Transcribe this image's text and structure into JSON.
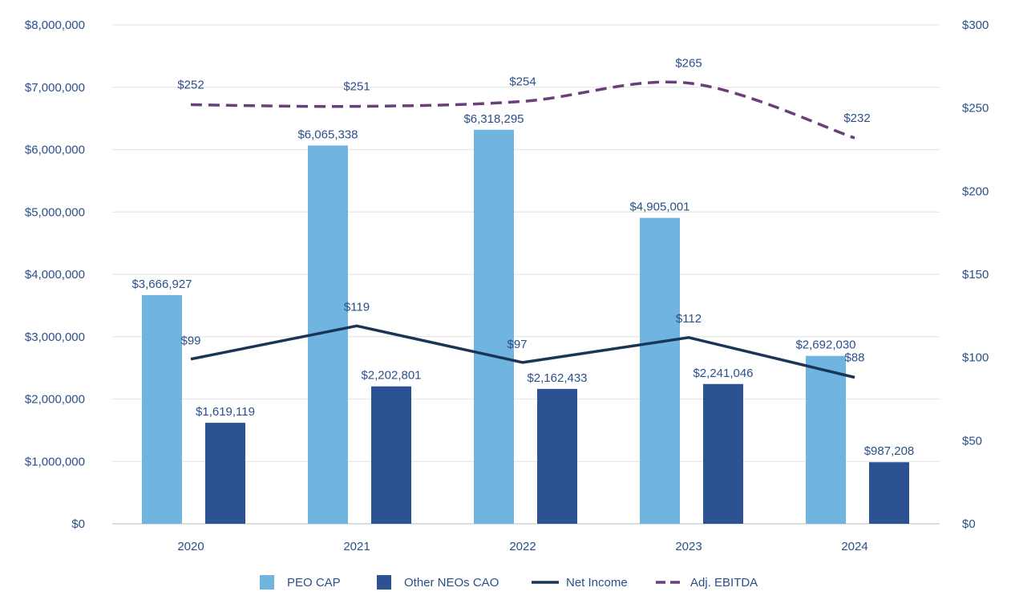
{
  "chart_data": {
    "type": "bar",
    "categories": [
      "2020",
      "2021",
      "2022",
      "2023",
      "2024"
    ],
    "left_axis": {
      "ylim": [
        0,
        8000000
      ],
      "ticks": [
        "$0",
        "$1,000,000",
        "$2,000,000",
        "$3,000,000",
        "$4,000,000",
        "$5,000,000",
        "$6,000,000",
        "$7,000,000",
        "$8,000,000"
      ]
    },
    "right_axis": {
      "ylim": [
        0,
        300
      ],
      "ticks": [
        "$0",
        "$50",
        "$100",
        "$150",
        "$200",
        "$250",
        "$300"
      ]
    },
    "grid": true,
    "legend_position": "bottom",
    "series": [
      {
        "name": "PEO CAP",
        "type": "bar",
        "axis": "left",
        "color": "#70b4e0",
        "values": [
          3666927,
          6065338,
          6318295,
          4905001,
          2692030
        ],
        "labels": [
          "$3,666,927",
          "$6,065,338",
          "$6,318,295",
          "$4,905,001",
          "$2,692,030"
        ]
      },
      {
        "name": "Other NEOs CAO",
        "type": "bar",
        "axis": "left",
        "color": "#2c5293",
        "values": [
          1619119,
          2202801,
          2162433,
          2241046,
          987208
        ],
        "labels": [
          "$1,619,119",
          "$2,202,801",
          "$2,162,433",
          "$2,241,046",
          "$987,208"
        ]
      },
      {
        "name": "Net Income",
        "type": "line",
        "axis": "right",
        "color": "#1b3557",
        "line_style": "solid",
        "values": [
          99,
          119,
          97,
          112,
          88
        ],
        "labels": [
          "$99",
          "$119",
          "$97",
          "$112",
          "$88"
        ]
      },
      {
        "name": "Adj. EBITDA",
        "type": "line",
        "axis": "right",
        "color": "#6b3f7a",
        "line_style": "dashed",
        "smooth": true,
        "values": [
          252,
          251,
          254,
          265,
          232
        ],
        "labels": [
          "$252",
          "$251",
          "$254",
          "$265",
          "$232"
        ]
      }
    ]
  }
}
